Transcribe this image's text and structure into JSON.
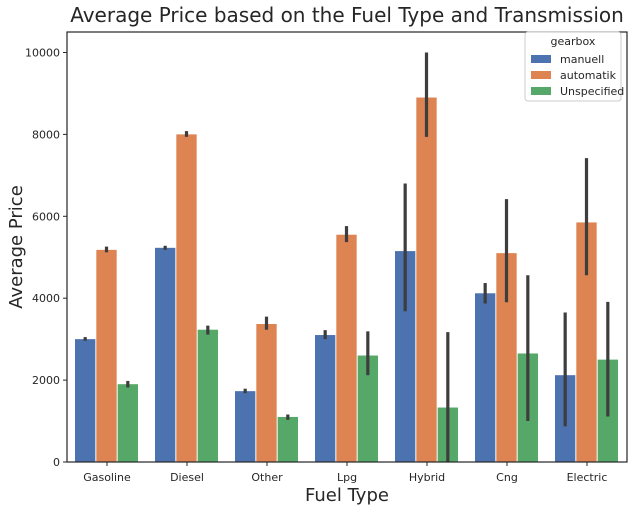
{
  "chart_data": {
    "type": "bar",
    "title": "Average Price based on the Fuel Type and Transmission",
    "xlabel": "Fuel Type",
    "ylabel": "Average Price",
    "ylim": [
      0,
      10500
    ],
    "yticks": [
      0,
      2000,
      4000,
      6000,
      8000,
      10000
    ],
    "grid": false,
    "legend": {
      "title": "gearbox",
      "placement": "top-right"
    },
    "categories": [
      "Gasoline",
      "Diesel",
      "Other",
      "Lpg",
      "Hybrid",
      "Cng",
      "Electric"
    ],
    "series": [
      {
        "name": "manuell",
        "color": "#4c72b0",
        "values": [
          3000,
          5230,
          1730,
          3100,
          5150,
          4120,
          2120
        ],
        "error_low": [
          2960,
          5180,
          1680,
          3000,
          3680,
          3870,
          870
        ],
        "error_high": [
          3050,
          5280,
          1790,
          3220,
          6800,
          4370,
          3650
        ]
      },
      {
        "name": "automatik",
        "color": "#dd8452",
        "values": [
          5180,
          8000,
          3370,
          5550,
          8900,
          5100,
          5850
        ],
        "error_low": [
          5120,
          7940,
          3230,
          5370,
          7940,
          3900,
          4560
        ],
        "error_high": [
          5260,
          8080,
          3550,
          5760,
          10000,
          6420,
          7420
        ]
      },
      {
        "name": "Unspecified",
        "color": "#55a868",
        "values": [
          1900,
          3230,
          1100,
          2600,
          1330,
          2650,
          2500
        ],
        "error_low": [
          1820,
          3110,
          1030,
          2120,
          0,
          1000,
          1110
        ],
        "error_high": [
          1980,
          3330,
          1160,
          3190,
          3170,
          4560,
          3910
        ]
      }
    ]
  }
}
